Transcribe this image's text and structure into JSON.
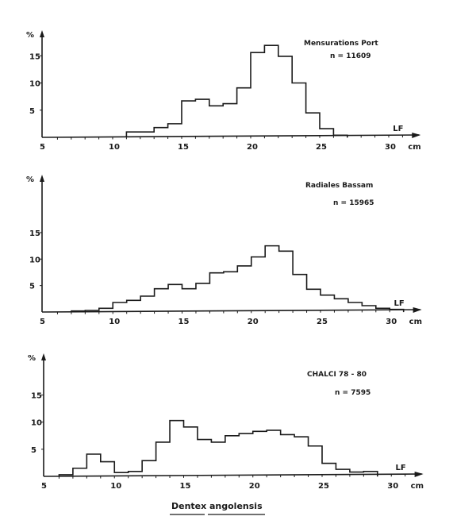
{
  "chart_data": [
    {
      "type": "histogram",
      "title": "Mensurations Port",
      "n_label": "n = 11609",
      "ylabel": "%",
      "xlabel": "LF",
      "x_unit": "cm",
      "x_ticks": [
        5,
        10,
        15,
        20,
        25,
        30
      ],
      "y_ticks": [
        5,
        10,
        15
      ],
      "xlim": [
        5,
        32
      ],
      "ylim": [
        0,
        19
      ],
      "bin_width": 1,
      "bin_starts": [
        11,
        12,
        13,
        14,
        15,
        16,
        17,
        18,
        19,
        20,
        21,
        22,
        23,
        24,
        25,
        26
      ],
      "values": [
        1.0,
        1.0,
        1.8,
        2.5,
        6.7,
        7.0,
        5.8,
        6.2,
        9.1,
        15.6,
        16.9,
        14.9,
        10.0,
        4.5,
        1.6,
        0.4
      ]
    },
    {
      "type": "histogram",
      "title": "Radiales Bassam",
      "n_label": "n = 15965",
      "ylabel": "%",
      "xlabel": "LF",
      "x_unit": "cm",
      "x_ticks": [
        5,
        10,
        15,
        20,
        25,
        30
      ],
      "y_ticks": [
        5,
        10,
        15
      ],
      "xlim": [
        5,
        32
      ],
      "ylim": [
        0,
        26
      ],
      "bin_width": 1,
      "bin_starts": [
        7,
        8,
        9,
        10,
        11,
        12,
        13,
        14,
        15,
        16,
        17,
        18,
        19,
        20,
        21,
        22,
        23,
        24,
        25,
        26,
        27,
        28,
        29,
        30
      ],
      "values": [
        0.2,
        0.3,
        0.7,
        1.8,
        2.2,
        3.0,
        4.4,
        5.2,
        4.4,
        5.4,
        7.4,
        7.6,
        8.7,
        10.4,
        12.5,
        11.5,
        7.1,
        4.3,
        3.2,
        2.5,
        1.8,
        1.2,
        0.7,
        0.5
      ]
    },
    {
      "type": "histogram",
      "title": "CHALCI 78 - 80",
      "n_label": "n = 7595",
      "ylabel": "%",
      "xlabel": "LF",
      "x_unit": "cm",
      "x_ticks": [
        5,
        10,
        15,
        20,
        25,
        30
      ],
      "y_ticks": [
        5,
        10,
        15
      ],
      "xlim": [
        5,
        32
      ],
      "ylim": [
        0,
        22
      ],
      "bin_width": 1,
      "bin_starts": [
        6,
        7,
        8,
        9,
        10,
        11,
        12,
        13,
        14,
        15,
        16,
        17,
        18,
        19,
        20,
        21,
        22,
        23,
        24,
        25,
        26,
        27,
        28
      ],
      "values": [
        0.3,
        1.5,
        4.1,
        2.7,
        0.7,
        0.9,
        2.9,
        6.3,
        10.3,
        9.1,
        6.8,
        6.3,
        7.5,
        7.9,
        8.3,
        8.5,
        7.7,
        7.3,
        5.6,
        2.4,
        1.3,
        0.8,
        0.9
      ]
    }
  ],
  "caption": {
    "genus": "Dentex",
    "species": "angolensis"
  },
  "colors": {
    "ink": "#1a1a1a",
    "background": "#ffffff"
  }
}
